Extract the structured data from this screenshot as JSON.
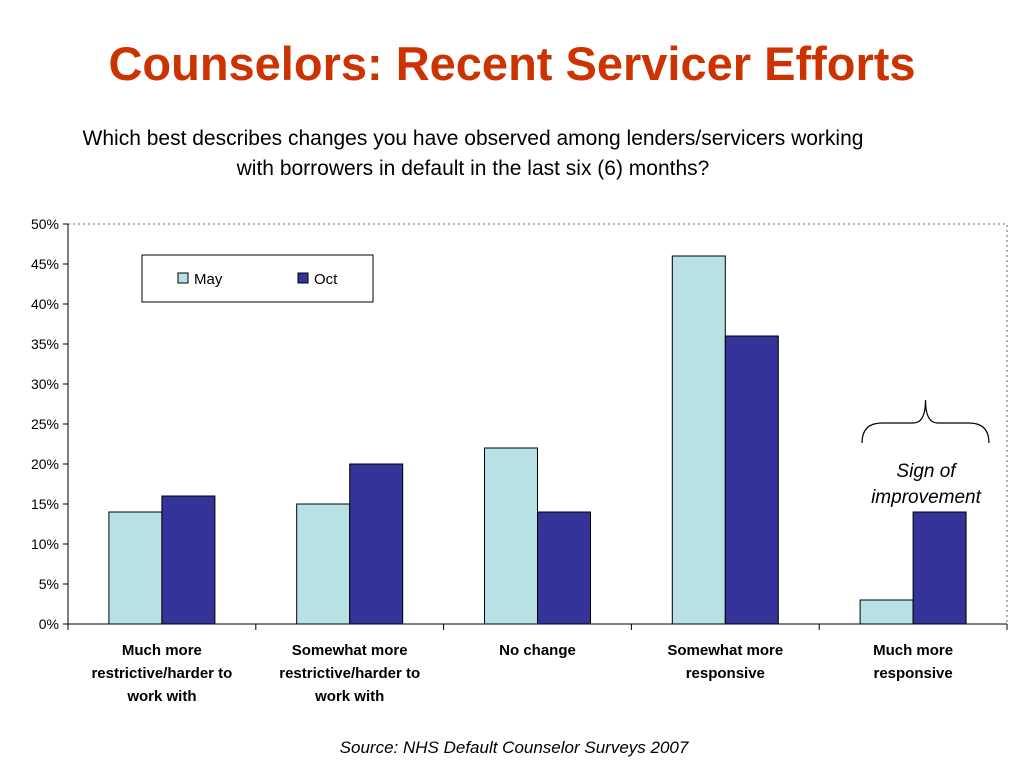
{
  "header": {
    "title": "Counselors: Recent Servicer Efforts",
    "subtitle_line1": "Which best describes changes you have observed among lenders/servicers working",
    "subtitle_line2": "with borrowers in default in the last six (6) months?"
  },
  "footer": {
    "source": "Source: NHS Default Counselor Surveys 2007"
  },
  "chart_data": {
    "type": "bar",
    "title": "",
    "xlabel": "",
    "ylabel": "",
    "ylim": [
      0,
      50
    ],
    "yticks": [
      "0%",
      "5%",
      "10%",
      "15%",
      "20%",
      "25%",
      "30%",
      "35%",
      "40%",
      "45%",
      "50%"
    ],
    "categories": [
      [
        "Much more",
        "restrictive/harder to",
        "work with"
      ],
      [
        "Somewhat more",
        "restrictive/harder to",
        "work with"
      ],
      [
        "No change"
      ],
      [
        "Somewhat more",
        "responsive"
      ],
      [
        "Much more",
        "responsive"
      ]
    ],
    "series": [
      {
        "name": "May",
        "color": "#b7e1e4",
        "values": [
          14,
          15,
          22,
          46,
          3
        ]
      },
      {
        "name": "Oct",
        "color": "#333399",
        "values": [
          16,
          20,
          14,
          36,
          14
        ]
      }
    ],
    "grid": false,
    "legend": "top-left",
    "annotation": [
      "Sign of",
      "improvement"
    ]
  }
}
